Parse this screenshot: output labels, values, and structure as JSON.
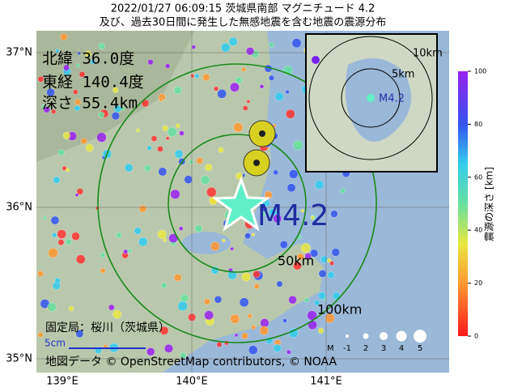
{
  "title": [
    "2022/01/27 06:09:15  茨城県南部 マグニチュード 4.2",
    "及び、過去30日間に発生した無感地震を含む地震の震源分布"
  ],
  "info": {
    "lat": "北緯  36.0度",
    "lon": "東経 140.4度",
    "depth": "深さ  55.4km"
  },
  "magnitude_label": "M4.2",
  "rings": [
    "50km",
    "100km"
  ],
  "inset": {
    "rings": [
      "10km",
      "5km"
    ],
    "label": "M4.2"
  },
  "station": "固定局：桜川（茨城県）",
  "scale": "5cm",
  "credit": "地図データ © OpenStreetMap contributors, © NOAA",
  "lat_ticks": [
    "37°N",
    "36°N",
    "35°N"
  ],
  "lon_ticks": [
    "139°E",
    "140°E",
    "141°E"
  ],
  "size_legend": {
    "title": "M",
    "labels": [
      "-1",
      "2",
      "3",
      "4",
      "5"
    ]
  },
  "colorbar": {
    "label": "震源の深さ [km]",
    "range": [
      0,
      100
    ],
    "ticks": [
      0,
      20,
      40,
      60,
      80,
      100
    ]
  }
}
